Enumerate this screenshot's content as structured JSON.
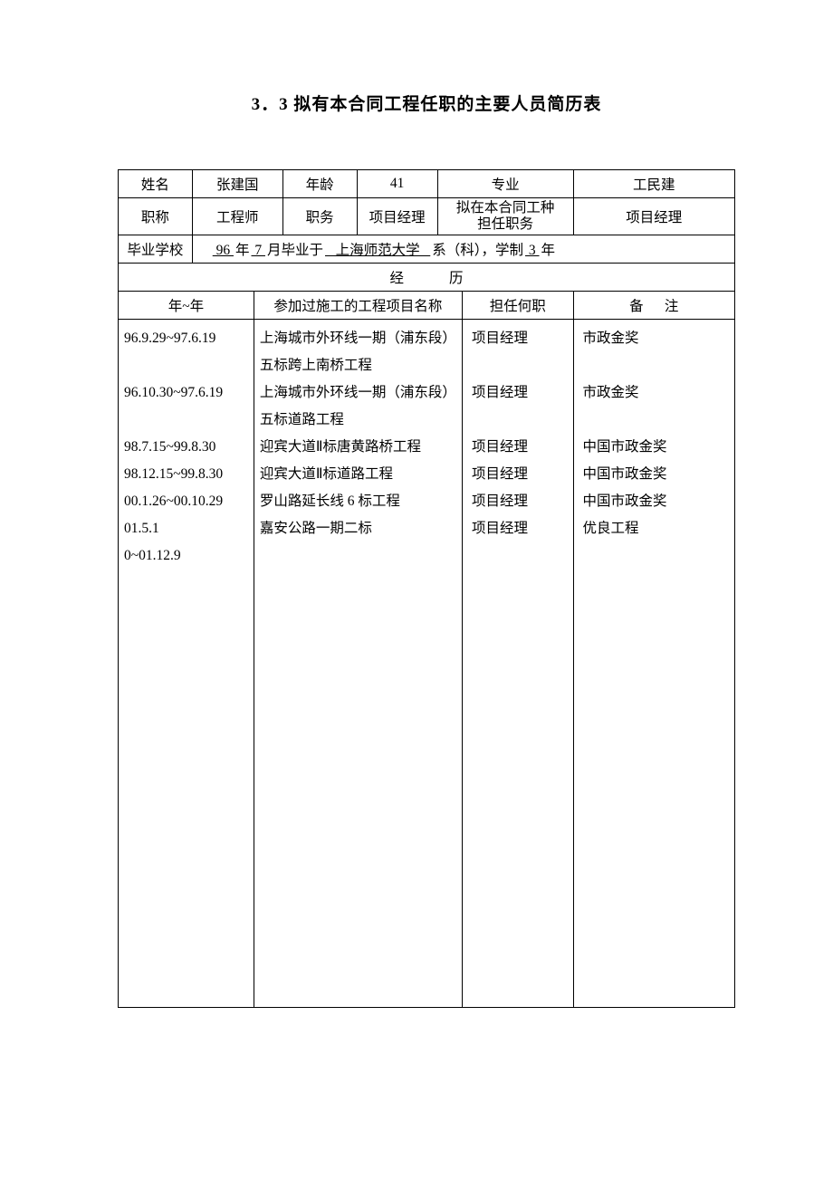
{
  "title": "3．3 拟有本合同工程任职的主要人员简历表",
  "labels": {
    "name": "姓名",
    "age": "年龄",
    "major": "专业",
    "title2": "职称",
    "duty": "职务",
    "contract_role": "拟在本合同工种\n担任职务",
    "school": "毕业学校",
    "school_prefix_year": "96",
    "school_text_year": "年",
    "school_month": "7",
    "school_text_month": "月毕业于",
    "school_name": "上海师范大学",
    "school_dept": "系（科），学制",
    "school_years": "3",
    "school_years_suffix": "年",
    "experience_header": "经历",
    "col_year": "年~年",
    "col_project": "参加过施工的工程项目名称",
    "col_role": "担任何职",
    "col_note": "备",
    "col_note2": "注"
  },
  "person": {
    "name": "张建国",
    "age": "41",
    "major": "工民建",
    "title2": "工程师",
    "duty": "项目经理",
    "contract_role": "项目经理"
  },
  "experience": [
    {
      "date": "96.9.29~97.6.19",
      "project": "上海城市外环线一期（浦东段）五标跨上南桥工程",
      "role": "项目经理",
      "note": "市政金奖"
    },
    {
      "date": "96.10.30~97.6.19",
      "project": "上海城市外环线一期（浦东段）五标道路工程",
      "role": "项目经理",
      "note": "市政金奖"
    },
    {
      "date": "98.7.15~99.8.30",
      "project": "迎宾大道Ⅱ标唐黄路桥工程",
      "role": "项目经理",
      "note": "中国市政金奖"
    },
    {
      "date": "98.12.15~99.8.30",
      "project": "迎宾大道Ⅱ标道路工程",
      "role": "项目经理",
      "note": "中国市政金奖"
    },
    {
      "date": "00.1.26~00.10.29",
      "project": "罗山路延长线 6 标工程",
      "role": "项目经理",
      "note": "中国市政金奖"
    },
    {
      "date": "01.5.1",
      "project": "嘉安公路一期二标",
      "role": "项目经理",
      "note": "优良工程"
    },
    {
      "date": "0~01.12.9",
      "project": "",
      "role": "",
      "note": ""
    }
  ],
  "layout": {
    "resume_body_height": 760
  }
}
